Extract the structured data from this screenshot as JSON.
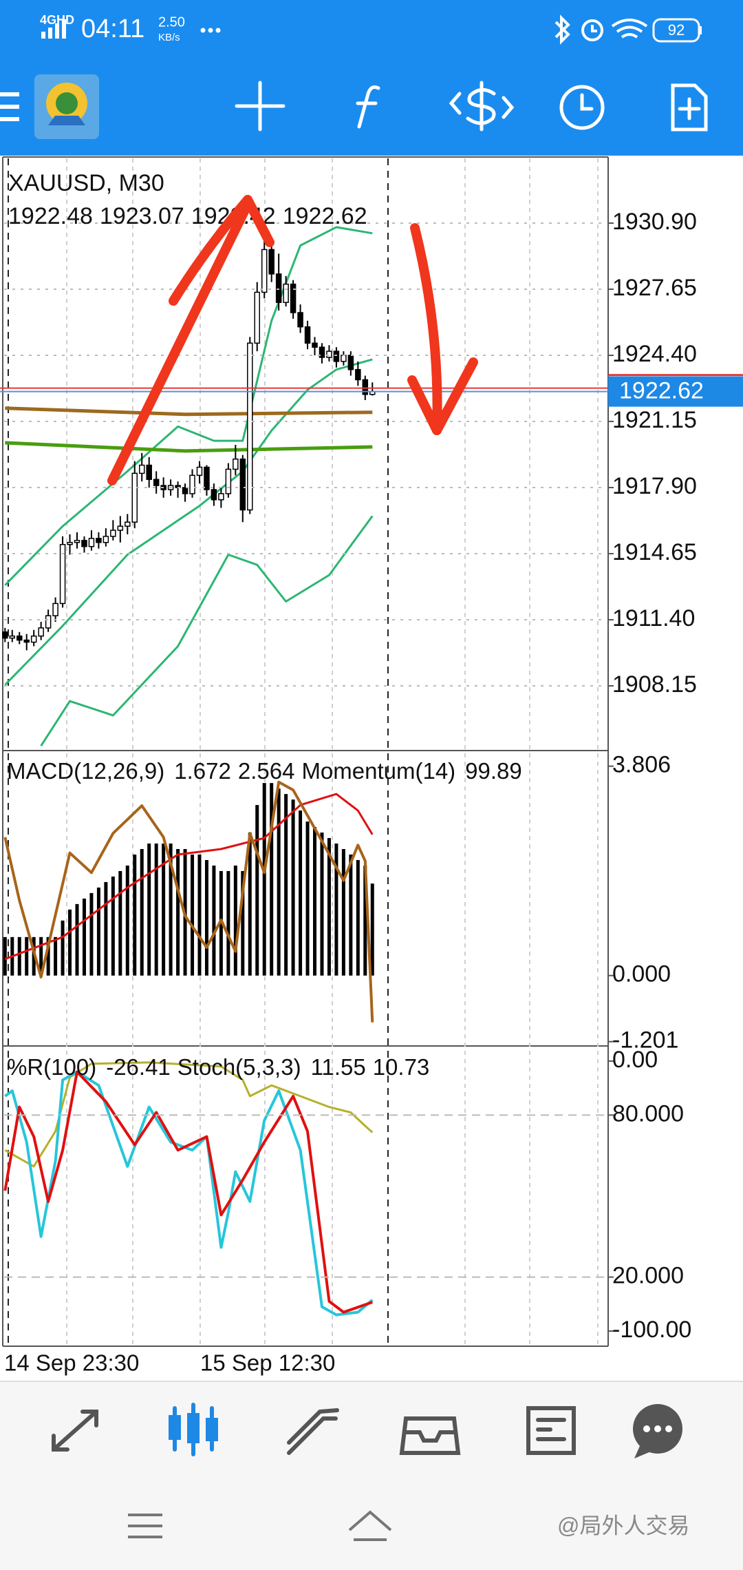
{
  "status_bar": {
    "network": "4GHD",
    "time": "04:11",
    "speed": "2.50",
    "speed_unit": "KB/s",
    "battery": "92"
  },
  "chart_data": [
    {
      "type": "candlestick",
      "title": "XAUUSD, M30",
      "color": "#000000",
      "grid": true,
      "ohlc": [
        [
          1910.8,
          1911.0,
          1910.3,
          1910.5
        ],
        [
          1910.5,
          1910.9,
          1910.3,
          1910.6
        ],
        [
          1910.6,
          1910.8,
          1910.2,
          1910.4
        ],
        [
          1910.4,
          1910.7,
          1909.9,
          1910.3
        ],
        [
          1910.3,
          1910.9,
          1910.1,
          1910.6
        ],
        [
          1910.6,
          1911.3,
          1910.4,
          1911.0
        ],
        [
          1911.0,
          1911.9,
          1910.8,
          1911.6
        ],
        [
          1911.6,
          1912.5,
          1911.3,
          1912.2
        ],
        [
          1912.2,
          1915.5,
          1912.0,
          1915.1
        ],
        [
          1915.1,
          1915.6,
          1914.6,
          1915.2
        ],
        [
          1915.2,
          1915.7,
          1914.9,
          1915.3
        ],
        [
          1915.3,
          1915.5,
          1914.7,
          1915.0
        ],
        [
          1915.0,
          1915.8,
          1914.8,
          1915.4
        ],
        [
          1915.4,
          1915.7,
          1914.9,
          1915.2
        ],
        [
          1915.2,
          1915.9,
          1915.0,
          1915.5
        ],
        [
          1915.5,
          1916.3,
          1915.3,
          1915.8
        ],
        [
          1915.8,
          1916.5,
          1915.2,
          1916.0
        ],
        [
          1916.0,
          1916.6,
          1915.6,
          1916.2
        ],
        [
          1916.2,
          1919.2,
          1915.9,
          1918.6
        ],
        [
          1918.6,
          1919.6,
          1918.2,
          1919.0
        ],
        [
          1919.0,
          1919.4,
          1917.9,
          1918.3
        ],
        [
          1918.3,
          1918.7,
          1917.6,
          1918.0
        ],
        [
          1918.0,
          1918.4,
          1917.4,
          1917.8
        ],
        [
          1917.8,
          1918.3,
          1917.5,
          1918.0
        ],
        [
          1918.0,
          1918.2,
          1917.4,
          1917.9
        ],
        [
          1917.9,
          1918.1,
          1917.2,
          1917.6
        ],
        [
          1917.6,
          1918.8,
          1917.4,
          1918.5
        ],
        [
          1918.5,
          1919.2,
          1918.1,
          1918.9
        ],
        [
          1918.9,
          1919.0,
          1917.5,
          1917.8
        ],
        [
          1917.8,
          1918.1,
          1917.0,
          1917.3
        ],
        [
          1917.3,
          1917.9,
          1916.9,
          1917.6
        ],
        [
          1917.6,
          1919.1,
          1917.4,
          1918.8
        ],
        [
          1918.8,
          1920.0,
          1918.5,
          1919.3
        ],
        [
          1919.3,
          1919.5,
          1916.2,
          1916.8
        ],
        [
          1916.8,
          1925.3,
          1916.6,
          1925.0
        ],
        [
          1925.0,
          1928.0,
          1924.6,
          1927.5
        ],
        [
          1927.5,
          1930.2,
          1927.2,
          1929.6
        ],
        [
          1929.6,
          1930.0,
          1928.0,
          1928.4
        ],
        [
          1928.4,
          1929.4,
          1926.6,
          1927.0
        ],
        [
          1927.0,
          1928.3,
          1926.8,
          1927.9
        ],
        [
          1927.9,
          1928.1,
          1926.2,
          1926.5
        ],
        [
          1926.5,
          1926.9,
          1925.5,
          1925.8
        ],
        [
          1925.8,
          1926.1,
          1924.7,
          1925.0
        ],
        [
          1925.0,
          1925.3,
          1924.4,
          1924.8
        ],
        [
          1924.8,
          1925.0,
          1924.0,
          1924.3
        ],
        [
          1924.3,
          1924.9,
          1924.1,
          1924.6
        ],
        [
          1924.6,
          1924.8,
          1923.8,
          1924.1
        ],
        [
          1924.1,
          1924.6,
          1923.9,
          1924.4
        ],
        [
          1924.4,
          1924.6,
          1923.4,
          1923.7
        ],
        [
          1923.7,
          1924.1,
          1922.9,
          1923.2
        ],
        [
          1923.2,
          1923.4,
          1922.2,
          1922.48
        ],
        [
          1922.48,
          1923.07,
          1922.42,
          1922.62
        ]
      ],
      "series": [
        {
          "color": "#2bb673",
          "x": [
            0,
            8,
            17,
            24,
            29,
            33,
            37,
            41,
            46,
            51
          ],
          "values": [
            1913.1,
            1916.0,
            1918.7,
            1920.9,
            1920.2,
            1920.2,
            1926.1,
            1929.8,
            1930.7,
            1930.4
          ]
        },
        {
          "color": "#2bb673",
          "x": [
            0,
            8,
            17,
            27,
            33,
            37,
            42,
            46,
            51
          ],
          "values": [
            1908.2,
            1911.1,
            1914.6,
            1917.0,
            1918.7,
            1920.7,
            1922.7,
            1923.7,
            1924.2
          ]
        },
        {
          "color": "#2bb673",
          "x": [
            5,
            9,
            15,
            24,
            31,
            35,
            39,
            45,
            51
          ],
          "values": [
            1905.2,
            1907.4,
            1906.7,
            1910.1,
            1914.6,
            1914.1,
            1912.3,
            1913.6,
            1916.5
          ]
        },
        {
          "color": "#9c6a1f",
          "x": [
            0,
            25,
            51
          ],
          "values": [
            1921.8,
            1921.5,
            1921.6
          ]
        },
        {
          "color": "#4a9d0f",
          "x": [
            0,
            25,
            51
          ],
          "values": [
            1920.1,
            1919.7,
            1919.9
          ]
        }
      ],
      "ylim": [
        1904.97,
        1934.15
      ],
      "yticks": [
        {
          "value": 1930.9,
          "label": "1930.90"
        },
        1927.65,
        {
          "value": 1924.4,
          "label": "1924.40"
        },
        1921.15,
        {
          "value": 1917.9,
          "label": "1917.90"
        },
        1914.65,
        {
          "value": 1911.4,
          "label": "1911.40"
        },
        1908.15
      ],
      "x_labels": [
        "14 Sep 23:30",
        "15 Sep 12:30"
      ]
    },
    {
      "type": "macd",
      "title": "MACD(12,26,9)",
      "color": "#000000",
      "histogram": [
        0.7,
        0.7,
        0.7,
        0.7,
        0.7,
        0.7,
        0.7,
        0.7,
        1.0,
        1.2,
        1.3,
        1.4,
        1.5,
        1.6,
        1.7,
        1.8,
        1.9,
        2.0,
        2.2,
        2.3,
        2.4,
        2.4,
        2.4,
        2.4,
        2.3,
        2.3,
        2.2,
        2.2,
        2.1,
        2.0,
        1.9,
        1.9,
        2.0,
        1.9,
        2.6,
        3.1,
        3.5,
        3.5,
        3.4,
        3.3,
        3.2,
        3.0,
        2.8,
        2.7,
        2.6,
        2.5,
        2.4,
        2.3,
        2.2,
        2.1,
        2.0,
        1.672
      ],
      "signal": {
        "color": "#e01010",
        "x": [
          0,
          8,
          17,
          24,
          30,
          36,
          41,
          46,
          49,
          51
        ],
        "values": [
          0.3,
          0.7,
          1.6,
          2.2,
          2.3,
          2.5,
          3.1,
          3.3,
          3.0,
          2.564
        ]
      },
      "momentum": {
        "title": "Momentum(14)",
        "color": "#a8641a",
        "ylim": [
          99.83,
          100.58
        ],
        "x": [
          0,
          2,
          5,
          9,
          12,
          15,
          19,
          22,
          25,
          28,
          30,
          32,
          34,
          36,
          38,
          40,
          44,
          47,
          49,
          50,
          51
        ],
        "values": [
          100.36,
          100.2,
          100.005,
          100.32,
          100.27,
          100.37,
          100.44,
          100.36,
          100.16,
          100.08,
          100.15,
          100.07,
          100.37,
          100.27,
          100.5,
          100.48,
          100.35,
          100.25,
          100.34,
          100.3,
          99.89
        ]
      },
      "ylim": [
        -1.28,
        4.09
      ],
      "yticks": [
        3.806,
        {
          "value": 0,
          "label": "0.000"
        },
        -1.201
      ]
    },
    {
      "type": "oscillator",
      "wpr": {
        "title": "%R(100)",
        "color": "#b5b02a",
        "ylim": [
          -105.6,
          5.6
        ],
        "yticks": [
          {
            "value": 0,
            "label": "0.00"
          },
          {
            "value": -100,
            "label": "-100.00"
          }
        ],
        "x": [
          0,
          4,
          7,
          9,
          12,
          20,
          30,
          33,
          34,
          37,
          41,
          45,
          48,
          50,
          51
        ],
        "values": [
          -33,
          -39,
          -26,
          -6,
          -1,
          -0.5,
          -2,
          -7,
          -13,
          -9,
          -13,
          -17,
          -19,
          -24,
          -26.41
        ]
      },
      "stoch": {
        "title": "Stoch(5,3,3)",
        "ylim": [
          -5.6,
          105.6
        ],
        "grid": true,
        "yticks": [
          {
            "value": 80,
            "label": "80.000"
          },
          {
            "value": 20,
            "label": "20.000"
          }
        ],
        "main": {
          "color": "#26c6da",
          "x": [
            0,
            1,
            3,
            5,
            7,
            8,
            10,
            13,
            17,
            20,
            23,
            26,
            28,
            30,
            31,
            32,
            34,
            36,
            38,
            41,
            44,
            46,
            49,
            51
          ],
          "values": [
            87,
            89,
            70,
            35,
            63,
            93,
            96,
            91,
            61,
            83,
            70,
            67,
            72,
            31,
            44,
            59,
            48,
            78,
            89,
            67,
            9,
            6,
            7,
            11.55
          ]
        },
        "signal": {
          "color": "#e01010",
          "x": [
            0,
            2,
            4,
            6,
            8,
            10,
            14,
            18,
            21,
            24,
            28,
            30,
            33,
            36,
            40,
            42,
            45,
            47,
            51
          ],
          "values": [
            52,
            83,
            72,
            48,
            67,
            96,
            85,
            69,
            81,
            67,
            72,
            43,
            56,
            70,
            87,
            74,
            11,
            7,
            10.73
          ]
        }
      }
    }
  ],
  "watermark": "@局外人交易"
}
